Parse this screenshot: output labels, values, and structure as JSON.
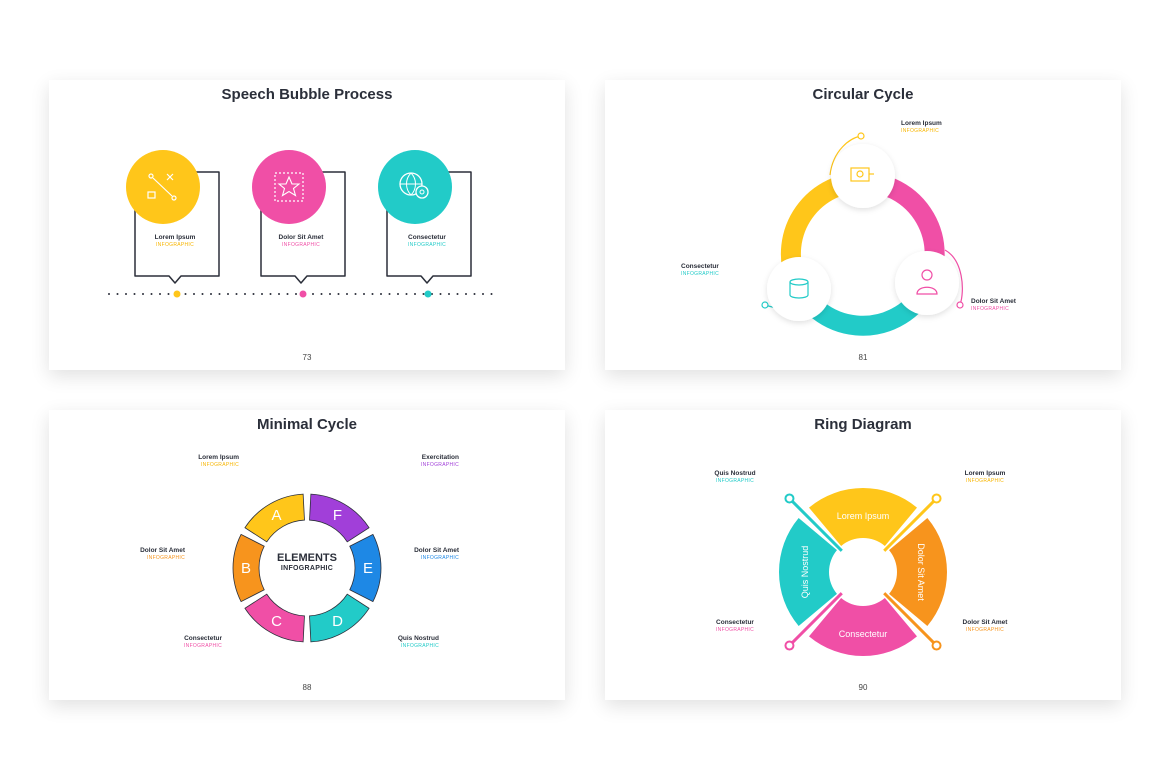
{
  "slides": [
    {
      "title": "Speech Bubble Process",
      "page": "73",
      "items": [
        {
          "heading": "Lorem Ipsum",
          "sub": "INFOGRAPHIC",
          "color": "#FFC61A"
        },
        {
          "heading": "Dolor Sit Amet",
          "sub": "INFOGRAPHIC",
          "color": "#F04FA6"
        },
        {
          "heading": "Consectetur",
          "sub": "INFOGRAPHIC",
          "color": "#22CBC8"
        }
      ]
    },
    {
      "title": "Circular Cycle",
      "page": "81",
      "items": [
        {
          "heading": "Lorem Ipsum",
          "sub": "INFOGRAPHIC",
          "color": "#FFC61A"
        },
        {
          "heading": "Consectetur",
          "sub": "INFOGRAPHIC",
          "color": "#22CBC8"
        },
        {
          "heading": "Dolor Sit Amet",
          "sub": "INFOGRAPHIC",
          "color": "#F04FA6"
        }
      ]
    },
    {
      "title": "Minimal Cycle",
      "page": "88",
      "center_title": "ELEMENTS",
      "center_sub": "INFOGRAPHIC",
      "segments": [
        "A",
        "B",
        "C",
        "D",
        "E",
        "F"
      ],
      "items": [
        {
          "heading": "Lorem Ipsum",
          "sub": "INFOGRAPHIC",
          "color": "#FFC61A"
        },
        {
          "heading": "Dolor Sit Amet",
          "sub": "INFOGRAPHIC",
          "color": "#F7941D"
        },
        {
          "heading": "Consectetur",
          "sub": "INFOGRAPHIC",
          "color": "#F04FA6"
        },
        {
          "heading": "Exercitation",
          "sub": "INFOGRAPHIC",
          "color": "#A13FD9"
        },
        {
          "heading": "Dolor Sit Amet",
          "sub": "INFOGRAPHIC",
          "color": "#1E88E5"
        },
        {
          "heading": "Quis Nostrud",
          "sub": "INFOGRAPHIC",
          "color": "#22CBC8"
        }
      ]
    },
    {
      "title": "Ring Diagram",
      "page": "90",
      "segments": [
        "Lorem Ipsum",
        "Dolor Sit Amet",
        "Consectetur",
        "Quis Nostrud"
      ],
      "items": [
        {
          "heading": "Quis Nostrud",
          "sub": "INFOGRAPHIC",
          "color": "#22CBC8"
        },
        {
          "heading": "Lorem Ipsum",
          "sub": "INFOGRAPHIC",
          "color": "#FFC61A"
        },
        {
          "heading": "Consectetur",
          "sub": "INFOGRAPHIC",
          "color": "#F04FA6"
        },
        {
          "heading": "Dolor Sit Amet",
          "sub": "INFOGRAPHIC",
          "color": "#F7941D"
        }
      ]
    }
  ]
}
